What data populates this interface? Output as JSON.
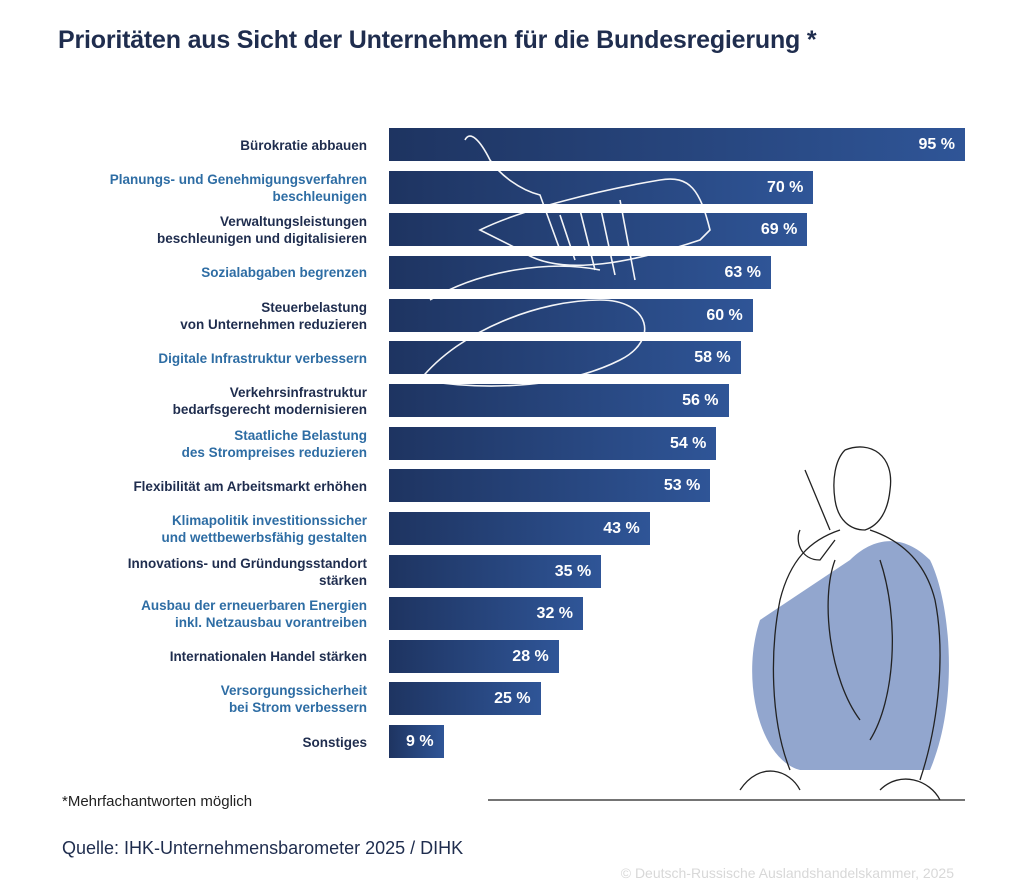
{
  "title": "Prioritäten aus Sicht der Unternehmen für die Bundesregierung *",
  "chart_data": {
    "type": "bar",
    "orientation": "horizontal",
    "title": "Prioritäten aus Sicht der Unternehmen für die Bundesregierung *",
    "categories": [
      [
        "Bürokratie abbauen"
      ],
      [
        "Planungs- und Genehmigungsverfahren",
        "beschleunigen"
      ],
      [
        "Verwaltungsleistungen",
        "beschleunigen und digitalisieren"
      ],
      [
        "Sozialabgaben begrenzen"
      ],
      [
        "Steuerbelastung",
        "von Unternehmen reduzieren"
      ],
      [
        "Digitale Infrastruktur verbessern"
      ],
      [
        "Verkehrsinfrastruktur",
        "bedarfsgerecht modernisieren"
      ],
      [
        "Staatliche Belastung",
        "des Strompreises reduzieren"
      ],
      [
        "Flexibilität am Arbeitsmarkt erhöhen"
      ],
      [
        "Klimapolitik investitionssicher",
        "und wettbewerbsfähig gestalten"
      ],
      [
        "Innovations- und Gründungsstandort",
        "stärken"
      ],
      [
        "Ausbau der erneuerbaren Energien",
        "inkl. Netzausbau vorantreiben"
      ],
      [
        "Internationalen Handel stärken"
      ],
      [
        "Versorgungssicherheit",
        "bei Strom verbessern"
      ],
      [
        "Sonstiges"
      ]
    ],
    "values": [
      95,
      70,
      69,
      63,
      60,
      58,
      56,
      54,
      53,
      43,
      35,
      32,
      28,
      25,
      9
    ],
    "value_labels": [
      "95 %",
      "70 %",
      "69 %",
      "63 %",
      "60 %",
      "58 %",
      "56 %",
      "54 %",
      "53 %",
      "43 %",
      "35 %",
      "32 %",
      "28 %",
      "25 %",
      "9 %"
    ],
    "xlim": [
      0,
      95
    ],
    "grid": false,
    "colors": {
      "bar_start": "#1e3461",
      "bar_end": "#2f5597",
      "label_dark": "#1f2d4e",
      "label_blue": "#2e6da4",
      "illustration_fill": "#7f97c6"
    }
  },
  "footnote": "*Mehrfachantworten möglich",
  "source": "Quelle: IHK-Unternehmensbarometer 2025 / DIHK",
  "copyright": "© Deutsch-Russische Auslandshandelskammer, 2025"
}
